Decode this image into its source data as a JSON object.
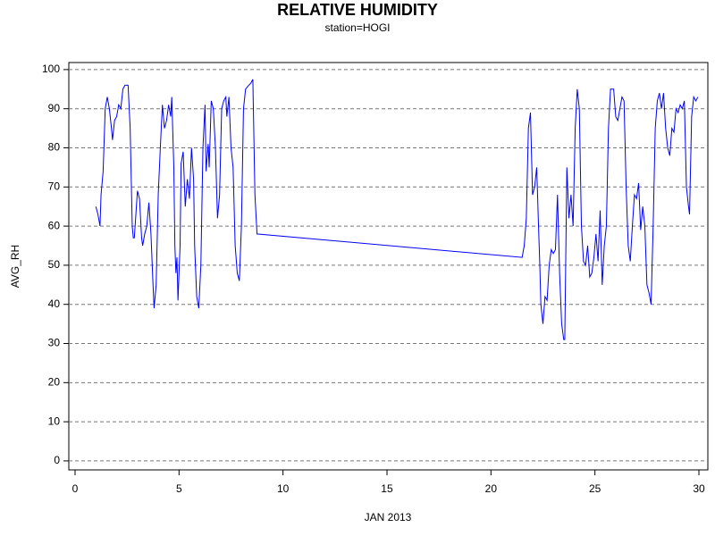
{
  "chart_data": {
    "type": "line",
    "title": "RELATIVE HUMIDITY",
    "subtitle": "station=HOGI",
    "xlabel": "JAN 2013",
    "ylabel": "AVG_RH",
    "xlim": [
      -0.3,
      30.43
    ],
    "ylim": [
      -2.3,
      101.8
    ],
    "xticks": [
      0,
      5,
      10,
      15,
      20,
      25,
      30
    ],
    "yticks": [
      0,
      10,
      20,
      30,
      40,
      50,
      60,
      70,
      80,
      90,
      100
    ],
    "grid": true,
    "x": [
      1.0,
      1.1,
      1.2,
      1.25,
      1.35,
      1.45,
      1.55,
      1.65,
      1.75,
      1.8,
      1.9,
      2.0,
      2.1,
      2.2,
      2.3,
      2.4,
      2.55,
      2.65,
      2.75,
      2.8,
      2.85,
      2.95,
      3.0,
      3.1,
      3.2,
      3.25,
      3.35,
      3.45,
      3.55,
      3.65,
      3.75,
      3.8,
      3.9,
      4.0,
      4.1,
      4.2,
      4.3,
      4.4,
      4.5,
      4.6,
      4.65,
      4.75,
      4.8,
      4.85,
      4.9,
      4.95,
      5.05,
      5.1,
      5.2,
      5.3,
      5.4,
      5.5,
      5.6,
      5.7,
      5.75,
      5.85,
      5.95,
      6.05,
      6.15,
      6.25,
      6.3,
      6.4,
      6.45,
      6.55,
      6.65,
      6.75,
      6.85,
      6.95,
      7.05,
      7.15,
      7.25,
      7.3,
      7.4,
      7.5,
      7.6,
      7.7,
      7.8,
      7.9,
      8.0,
      8.1,
      8.2,
      8.35,
      8.45,
      8.5,
      8.55,
      8.65,
      8.75,
      21.5,
      21.6,
      21.7,
      21.8,
      21.9,
      22.0,
      22.1,
      22.2,
      22.3,
      22.35,
      22.4,
      22.5,
      22.6,
      22.7,
      22.8,
      22.9,
      23.0,
      23.1,
      23.2,
      23.3,
      23.4,
      23.5,
      23.55,
      23.65,
      23.75,
      23.85,
      23.95,
      24.05,
      24.15,
      24.25,
      24.35,
      24.45,
      24.55,
      24.65,
      24.75,
      24.85,
      24.95,
      25.05,
      25.15,
      25.25,
      25.35,
      25.45,
      25.55,
      25.65,
      25.75,
      25.9,
      26.0,
      26.1,
      26.2,
      26.3,
      26.4,
      26.5,
      26.6,
      26.7,
      26.8,
      26.9,
      27.0,
      27.1,
      27.2,
      27.3,
      27.4,
      27.5,
      27.6,
      27.7,
      27.8,
      27.9,
      28.0,
      28.1,
      28.2,
      28.3,
      28.4,
      28.5,
      28.6,
      28.7,
      28.8,
      28.9,
      29.0,
      29.1,
      29.2,
      29.3,
      29.4,
      29.5,
      29.55,
      29.65,
      29.75,
      29.85,
      29.95
    ],
    "series": [
      {
        "name": "AVG_RH",
        "color": "#0000ff",
        "values": [
          65,
          63,
          60,
          68,
          74,
          90,
          93,
          90,
          85,
          82,
          87,
          88,
          91,
          90,
          95,
          96,
          96,
          85,
          60,
          57,
          57,
          65,
          69,
          67,
          57,
          55,
          58,
          60,
          66,
          58,
          45,
          39,
          45,
          68,
          80,
          91,
          85,
          87,
          91,
          88,
          93,
          75,
          55,
          48,
          52,
          41,
          55,
          76,
          79,
          65,
          72,
          67,
          80,
          72,
          55,
          42,
          39,
          50,
          80,
          91,
          74,
          81,
          75,
          92,
          90,
          80,
          62,
          68,
          90,
          92,
          93,
          88,
          93,
          80,
          75,
          55,
          48,
          46,
          60,
          90,
          95,
          96,
          96.5,
          97,
          97.5,
          68,
          58,
          52,
          55,
          62,
          85,
          89,
          68,
          70,
          75,
          58,
          50,
          40,
          35,
          42,
          41,
          50,
          54,
          53,
          54,
          68,
          48,
          35,
          31,
          31,
          75,
          62,
          68,
          60,
          85,
          95,
          90,
          60,
          51,
          50,
          55,
          47,
          48,
          52,
          58,
          51,
          64,
          45,
          55,
          60,
          85,
          95,
          95,
          88,
          87,
          90,
          93,
          92,
          70,
          55,
          51,
          60,
          68,
          67,
          71,
          59,
          65,
          60,
          45,
          43,
          40,
          60,
          85,
          92,
          94,
          90,
          94,
          85,
          80,
          78,
          85,
          84,
          90,
          89,
          91,
          90,
          92,
          70,
          65,
          63,
          88,
          93,
          92,
          93
        ]
      }
    ]
  }
}
